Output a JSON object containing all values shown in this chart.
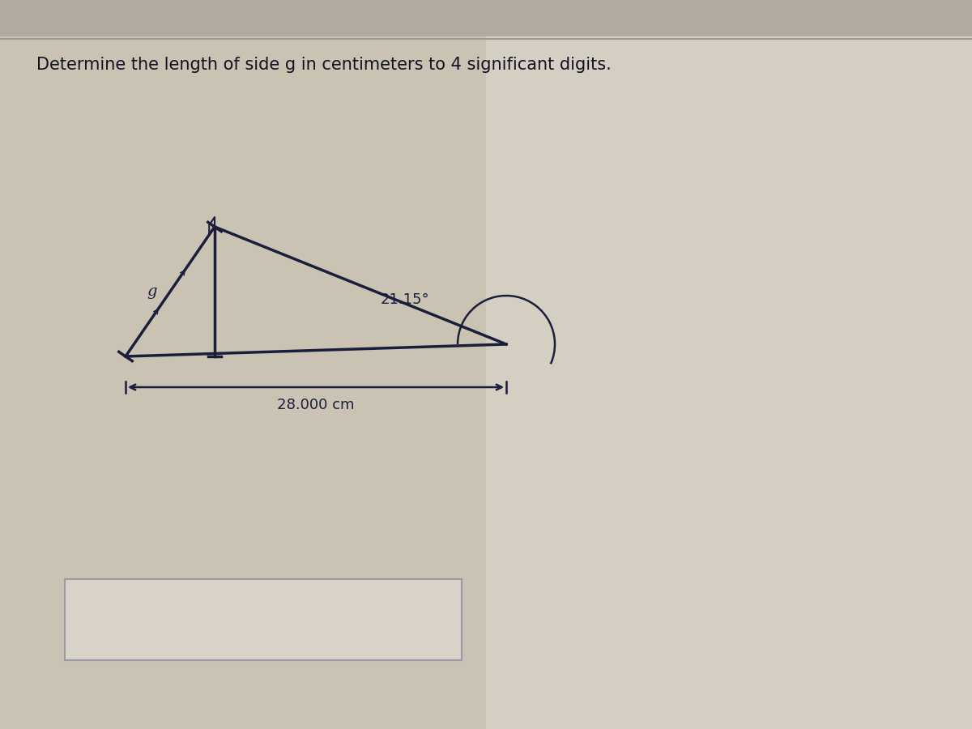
{
  "title": "Determine the length of side g in centimeters to 4 significant digits.",
  "title_fontsize": 15,
  "bg_color": "#ccc5b5",
  "right_bg": "#d8d2c8",
  "line_color": "#1a1e3a",
  "angle_label": "21.15°",
  "base_label": "28.000 cm",
  "side_label": "g",
  "answer_box_edge": "#9999aa",
  "answer_box_fill": "#d8d2c8"
}
